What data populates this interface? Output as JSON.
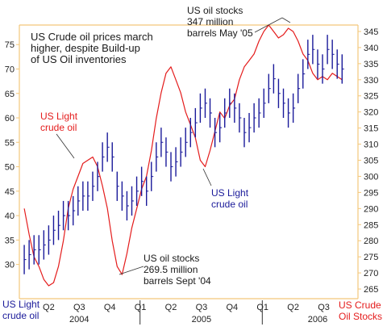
{
  "chart_data": {
    "type": "line",
    "title_lines": [
      "US Crude oil prices march",
      "higher, despite Build-up",
      "of US Oil inventories"
    ],
    "left_axis": {
      "ylim": [
        23,
        79
      ],
      "ticks": [
        "30",
        "35",
        "40",
        "45",
        "50",
        "55",
        "60",
        "65",
        "70",
        "75"
      ]
    },
    "right_axis": {
      "ylim": [
        262,
        347
      ],
      "ticks": [
        "265",
        "270",
        "275",
        "280",
        "285",
        "290",
        "295",
        "300",
        "305",
        "310",
        "315",
        "320",
        "325",
        "330",
        "335",
        "340",
        "345"
      ]
    },
    "x_axis": {
      "quarters": [
        "Q2",
        "Q3",
        "Q4",
        "Q1",
        "Q2",
        "Q3",
        "Q4",
        "Q1",
        "Q2",
        "Q3"
      ],
      "years": [
        "2004",
        "2005",
        "2006"
      ]
    },
    "axis_labels": {
      "left": [
        "US Light",
        "crude oil"
      ],
      "right": [
        "US Crude",
        "Oil Stocks"
      ]
    },
    "series": [
      {
        "name": "US Light crude oil",
        "color": "#1a1a9a",
        "x": [
          2004.0,
          2004.04,
          2004.08,
          2004.12,
          2004.16,
          2004.2,
          2004.24,
          2004.28,
          2004.32,
          2004.36,
          2004.4,
          2004.44,
          2004.48,
          2004.52,
          2004.56,
          2004.6,
          2004.64,
          2004.68,
          2004.72,
          2004.76,
          2004.8,
          2004.84,
          2004.88,
          2004.92,
          2004.96,
          2005.0,
          2005.04,
          2005.08,
          2005.12,
          2005.16,
          2005.2,
          2005.24,
          2005.28,
          2005.32,
          2005.36,
          2005.4,
          2005.44,
          2005.48,
          2005.52,
          2005.56,
          2005.6,
          2005.64,
          2005.68,
          2005.72,
          2005.76,
          2005.8,
          2005.84,
          2005.88,
          2005.92,
          2005.96,
          2006.0,
          2006.04,
          2006.08,
          2006.12,
          2006.16,
          2006.2,
          2006.24,
          2006.28,
          2006.32,
          2006.36,
          2006.4,
          2006.44,
          2006.48,
          2006.52,
          2006.56,
          2006.6
        ],
        "values": [
          31,
          32,
          33,
          33,
          34,
          35,
          37,
          38,
          40,
          40,
          41,
          43,
          44,
          44,
          46,
          48,
          52,
          54,
          52,
          46,
          44,
          42,
          43,
          45,
          47,
          45,
          48,
          52,
          55,
          53,
          50,
          51,
          53,
          55,
          57,
          59,
          62,
          63,
          61,
          57,
          58,
          61,
          63,
          62,
          60,
          57,
          58,
          60,
          61,
          63,
          66,
          68,
          65,
          63,
          61,
          62,
          66,
          69,
          73,
          74,
          71,
          70,
          74,
          73,
          71,
          70
        ]
      },
      {
        "name": "US Crude Oil Stocks",
        "color": "#e41c1c",
        "x": [
          2004.0,
          2004.04,
          2004.08,
          2004.12,
          2004.16,
          2004.2,
          2004.24,
          2004.28,
          2004.32,
          2004.36,
          2004.4,
          2004.44,
          2004.48,
          2004.52,
          2004.56,
          2004.6,
          2004.64,
          2004.68,
          2004.72,
          2004.76,
          2004.8,
          2004.84,
          2004.88,
          2004.92,
          2004.96,
          2005.0,
          2005.04,
          2005.08,
          2005.12,
          2005.16,
          2005.2,
          2005.24,
          2005.28,
          2005.32,
          2005.36,
          2005.4,
          2005.44,
          2005.48,
          2005.52,
          2005.56,
          2005.6,
          2005.64,
          2005.68,
          2005.72,
          2005.76,
          2005.8,
          2005.84,
          2005.88,
          2005.92,
          2005.96,
          2006.0,
          2006.04,
          2006.08,
          2006.12,
          2006.16,
          2006.2,
          2006.24,
          2006.28,
          2006.32,
          2006.36,
          2006.4,
          2006.44,
          2006.48,
          2006.52,
          2006.56,
          2006.6
        ],
        "values": [
          290,
          282,
          275,
          272,
          268,
          266,
          267,
          272,
          280,
          290,
          296,
          300,
          304,
          305,
          306,
          303,
          297,
          290,
          280,
          272,
          269.5,
          276,
          284,
          290,
          296,
          300,
          308,
          318,
          326,
          332,
          334,
          330,
          326,
          320,
          316,
          312,
          305,
          303,
          308,
          314,
          320,
          318,
          322,
          324,
          330,
          334,
          336,
          338,
          342,
          345,
          347,
          345,
          343,
          344,
          346,
          345,
          342,
          338,
          336,
          332,
          330,
          331,
          330,
          332,
          331,
          330
        ]
      }
    ],
    "annotations": {
      "light_red": [
        "US Light",
        "crude oil"
      ],
      "light_blue": [
        "US Light",
        "crude oil"
      ],
      "stocks_may": [
        "US oil stocks",
        "347 million",
        "barrels May '05"
      ],
      "stocks_sept": [
        "US oil stocks",
        "269.5 million",
        "barrels Sept '04"
      ]
    },
    "colors": {
      "price": "#1a1a9a",
      "stocks": "#e41c1c",
      "axis": "#f3c77b",
      "text": "#1a1a1a"
    },
    "grid": false
  }
}
